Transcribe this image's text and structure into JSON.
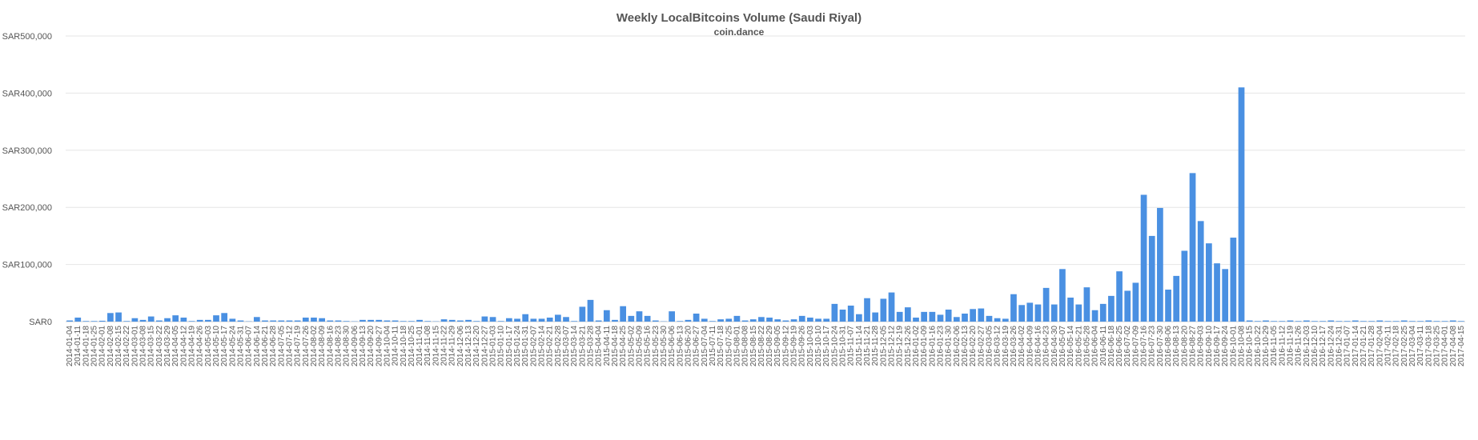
{
  "chart_data": {
    "type": "bar",
    "title": "Weekly LocalBitcoins Volume (Saudi Riyal)",
    "subtitle": "coin.dance",
    "xlabel": "",
    "ylabel": "",
    "ylim": [
      0,
      500000
    ],
    "yticks": [
      0,
      100000,
      200000,
      300000,
      400000,
      500000
    ],
    "ytick_labels": [
      "SAR0",
      "SAR100,000",
      "SAR200,000",
      "SAR300,000",
      "SAR400,000",
      "SAR500,000"
    ],
    "grid": true,
    "bar_color": "#4a90e2",
    "categories": [
      "2014-01-04",
      "2014-01-11",
      "2014-01-18",
      "2014-01-25",
      "2014-02-01",
      "2014-02-08",
      "2014-02-15",
      "2014-02-22",
      "2014-03-01",
      "2014-03-08",
      "2014-03-15",
      "2014-03-22",
      "2014-03-29",
      "2014-04-05",
      "2014-04-12",
      "2014-04-19",
      "2014-04-26",
      "2014-05-03",
      "2014-05-10",
      "2014-05-17",
      "2014-05-24",
      "2014-05-31",
      "2014-06-07",
      "2014-06-14",
      "2014-06-21",
      "2014-06-28",
      "2014-07-05",
      "2014-07-12",
      "2014-07-19",
      "2014-07-26",
      "2014-08-02",
      "2014-08-09",
      "2014-08-16",
      "2014-08-23",
      "2014-08-30",
      "2014-09-06",
      "2014-09-13",
      "2014-09-20",
      "2014-09-27",
      "2014-10-04",
      "2014-10-11",
      "2014-10-18",
      "2014-10-25",
      "2014-11-01",
      "2014-11-08",
      "2014-11-15",
      "2014-11-22",
      "2014-11-29",
      "2014-12-06",
      "2014-12-13",
      "2014-12-20",
      "2014-12-27",
      "2015-01-03",
      "2015-01-10",
      "2015-01-17",
      "2015-01-24",
      "2015-01-31",
      "2015-02-07",
      "2015-02-14",
      "2015-02-21",
      "2015-02-28",
      "2015-03-07",
      "2015-03-14",
      "2015-03-21",
      "2015-03-28",
      "2015-04-04",
      "2015-04-11",
      "2015-04-18",
      "2015-04-25",
      "2015-05-02",
      "2015-05-09",
      "2015-05-16",
      "2015-05-23",
      "2015-05-30",
      "2015-06-06",
      "2015-06-13",
      "2015-06-20",
      "2015-06-27",
      "2015-07-04",
      "2015-07-11",
      "2015-07-18",
      "2015-07-25",
      "2015-08-01",
      "2015-08-08",
      "2015-08-15",
      "2015-08-22",
      "2015-08-29",
      "2015-09-05",
      "2015-09-12",
      "2015-09-19",
      "2015-09-26",
      "2015-10-03",
      "2015-10-10",
      "2015-10-17",
      "2015-10-24",
      "2015-10-31",
      "2015-11-07",
      "2015-11-14",
      "2015-11-21",
      "2015-11-28",
      "2015-12-05",
      "2015-12-12",
      "2015-12-19",
      "2015-12-26",
      "2016-01-02",
      "2016-01-09",
      "2016-01-16",
      "2016-01-23",
      "2016-01-30",
      "2016-02-06",
      "2016-02-13",
      "2016-02-20",
      "2016-02-27",
      "2016-03-05",
      "2016-03-12",
      "2016-03-19",
      "2016-03-26",
      "2016-04-02",
      "2016-04-09",
      "2016-04-16",
      "2016-04-23",
      "2016-04-30",
      "2016-05-07",
      "2016-05-14",
      "2016-05-21",
      "2016-05-28",
      "2016-06-04",
      "2016-06-11",
      "2016-06-18",
      "2016-06-25",
      "2016-07-02",
      "2016-07-09",
      "2016-07-16",
      "2016-07-23",
      "2016-07-30",
      "2016-08-06",
      "2016-08-13",
      "2016-08-20",
      "2016-08-27",
      "2016-09-03",
      "2016-09-10",
      "2016-09-17",
      "2016-09-24",
      "2016-10-01",
      "2016-10-08",
      "2016-10-15",
      "2016-10-22",
      "2016-10-29",
      "2016-11-05",
      "2016-11-12",
      "2016-11-19",
      "2016-11-26",
      "2016-12-03",
      "2016-12-10",
      "2016-12-17",
      "2016-12-24",
      "2016-12-31",
      "2017-01-07",
      "2017-01-14",
      "2017-01-21",
      "2017-01-28",
      "2017-02-04",
      "2017-02-11",
      "2017-02-18",
      "2017-02-25",
      "2017-03-04",
      "2017-03-11",
      "2017-03-18",
      "2017-03-25",
      "2017-04-01",
      "2017-04-08",
      "2017-04-15"
    ],
    "values": [
      2000,
      7000,
      1000,
      1000,
      1500,
      15000,
      16000,
      1000,
      6000,
      3000,
      9000,
      2000,
      6000,
      11000,
      7000,
      1000,
      3000,
      3000,
      11000,
      15000,
      5000,
      2000,
      500,
      8000,
      2000,
      2000,
      2000,
      2000,
      2000,
      7000,
      7000,
      6000,
      2000,
      2000,
      1000,
      500,
      3000,
      3000,
      3000,
      2000,
      2000,
      1000,
      1000,
      3000,
      1000,
      500,
      4000,
      3000,
      2000,
      3000,
      1000,
      9000,
      8000,
      1000,
      6000,
      5000,
      13000,
      5000,
      5000,
      7000,
      12000,
      8000,
      1000,
      26000,
      38000,
      2000,
      20000,
      3000,
      27000,
      10000,
      18000,
      10000,
      2000,
      500,
      18000,
      1000,
      3000,
      14000,
      5000,
      1000,
      4000,
      5000,
      10000,
      2000,
      4000,
      8000,
      7000,
      4000,
      2000,
      4000,
      10000,
      7000,
      5000,
      5000,
      31000,
      21000,
      28000,
      13000,
      41000,
      16000,
      40000,
      51000,
      17000,
      25000,
      7000,
      17000,
      17000,
      12000,
      21000,
      8000,
      14000,
      22000,
      23000,
      10000,
      6000,
      5000,
      48000,
      29000,
      33000,
      30000,
      59000,
      30000,
      92000,
      42000,
      30000,
      60000,
      20000,
      31000,
      45000,
      88000,
      54000,
      68000,
      222000,
      150000,
      199000,
      56000,
      80000,
      124000,
      260000,
      176000,
      137000,
      102000,
      92000,
      147000,
      410000,
      2000,
      1000,
      2000,
      1000,
      1000,
      2000,
      1000,
      2000,
      1000,
      1000,
      2000,
      1000,
      1000,
      2000,
      1000,
      1000,
      2000,
      1000,
      1000,
      2000,
      1000,
      1000,
      2000,
      1000,
      1000,
      2000,
      1000
    ]
  }
}
